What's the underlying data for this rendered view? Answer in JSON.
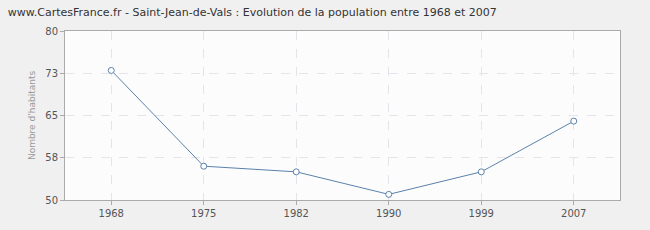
{
  "chart_data": {
    "type": "line",
    "title": "www.CartesFrance.fr - Saint-Jean-de-Vals : Evolution de la population entre 1968 et 2007",
    "y_label": "Nombre d'habitants",
    "categories": [
      "1968",
      "1975",
      "1982",
      "1990",
      "1999",
      "2007"
    ],
    "values": [
      73,
      56,
      55,
      51,
      55,
      64
    ],
    "color": "#5b82ab",
    "marker": "circle",
    "ylim": [
      50,
      80
    ],
    "yticks": [
      50,
      {
        "value": 57.5,
        "label": "58"
      },
      65,
      {
        "value": 72.5,
        "label": "73"
      },
      80
    ],
    "grid": true
  }
}
